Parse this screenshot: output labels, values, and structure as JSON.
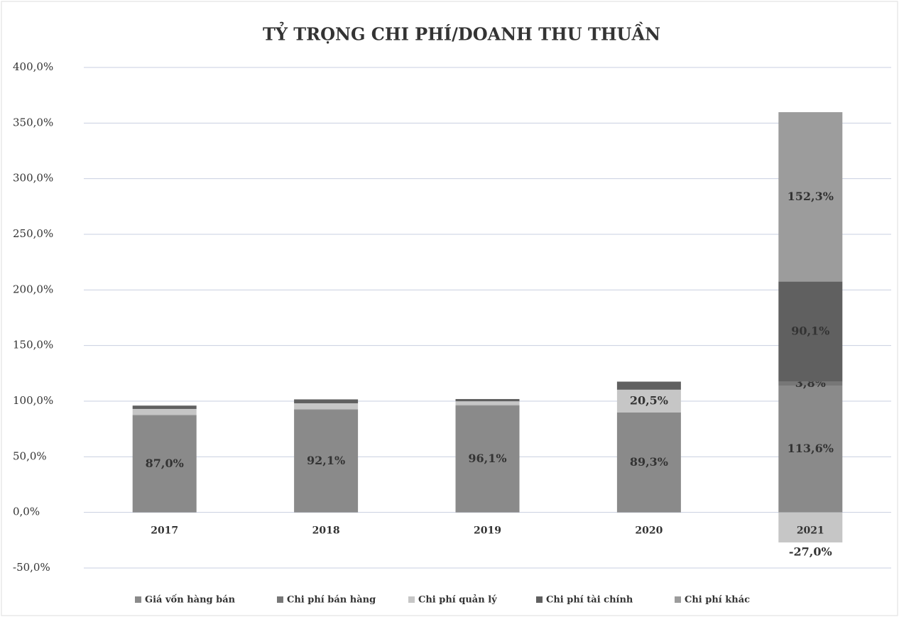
{
  "chart_data": {
    "type": "stacked_bar",
    "title": "TỶ TRỌNG CHI PHÍ/DOANH THU THUẦN",
    "categories": [
      "2017",
      "2018",
      "2019",
      "2020",
      "2021"
    ],
    "series": [
      {
        "name": "Giá vốn hàng bán",
        "color": "#8a8a8a",
        "values": [
          87.0,
          92.1,
          96.1,
          89.3,
          113.6
        ],
        "value_labels": [
          "87,0%",
          "92,1%",
          "96,1%",
          "89,3%",
          "113,6%"
        ]
      },
      {
        "name": "Chi phí bán hàng",
        "color": "#777777",
        "values": [
          0.5,
          0.5,
          0.3,
          0.5,
          3.8
        ],
        "value_labels": [
          null,
          null,
          null,
          null,
          "3,8%"
        ]
      },
      {
        "name": "Chi phí quản lý",
        "color": "#c6c6c6",
        "values": [
          5.5,
          5.5,
          3.5,
          20.5,
          -27.0
        ],
        "value_labels": [
          null,
          null,
          null,
          "20,5%",
          "-27,0%"
        ]
      },
      {
        "name": "Chi phí tài chính",
        "color": "#606060",
        "values": [
          3.0,
          3.5,
          2.0,
          7.0,
          90.1
        ],
        "value_labels": [
          null,
          null,
          null,
          null,
          "90,1%"
        ]
      },
      {
        "name": "Chi phí khác",
        "color": "#9c9c9c",
        "values": [
          0,
          0,
          0,
          0.5,
          152.3
        ],
        "value_labels": [
          null,
          null,
          null,
          null,
          "152,3%"
        ]
      }
    ],
    "ylim": [
      -50,
      400
    ],
    "yticks": [
      {
        "value": -50,
        "label": "-50,0%"
      },
      {
        "value": 0,
        "label": "0,0%"
      },
      {
        "value": 50,
        "label": "50,0%"
      },
      {
        "value": 100,
        "label": "100,0%"
      },
      {
        "value": 150,
        "label": "150,0%"
      },
      {
        "value": 200,
        "label": "200,0%"
      },
      {
        "value": 250,
        "label": "250,0%"
      },
      {
        "value": 300,
        "label": "300,0%"
      },
      {
        "value": 350,
        "label": "350,0%"
      },
      {
        "value": 400,
        "label": "400,0%"
      }
    ],
    "grid": true,
    "legend": "bottom"
  }
}
